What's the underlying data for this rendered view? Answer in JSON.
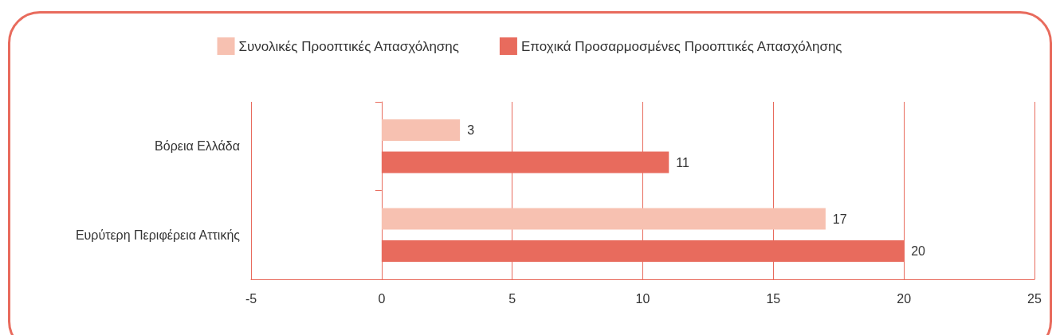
{
  "chart_data": {
    "type": "bar",
    "orientation": "horizontal",
    "categories": [
      "Βόρεια Ελλάδα",
      "Ευρύτερη Περιφέρεια Αττικής"
    ],
    "series": [
      {
        "name": "Συνολικές Προοπτικές Απασχόλησης",
        "color": "#f7c1b1",
        "values": [
          3,
          17
        ]
      },
      {
        "name": "Εποχικά Προσαρμοσμένες Προοπτικές Απασχόλησης",
        "color": "#e86b5d",
        "values": [
          11,
          20
        ]
      }
    ],
    "xlim": [
      -5,
      25
    ],
    "xticks": [
      -5,
      0,
      5,
      10,
      15,
      20,
      25
    ],
    "grid": "x",
    "legend": "top",
    "data_labels": true
  }
}
